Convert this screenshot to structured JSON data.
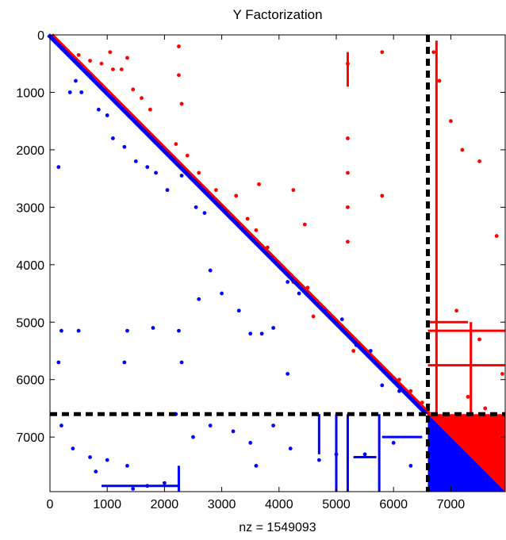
{
  "chart_data": {
    "type": "scatter",
    "subtype": "matrix-sparsity-pattern",
    "title": "Y Factorization",
    "xlabel": "nz = 1549093",
    "ylabel": "",
    "xlim": [
      0,
      7950
    ],
    "ylim": [
      7950,
      0
    ],
    "y_axis_inverted": true,
    "xticks": [
      0,
      1000,
      2000,
      3000,
      4000,
      5000,
      6000,
      7000
    ],
    "yticks": [
      0,
      1000,
      2000,
      3000,
      4000,
      5000,
      6000,
      7000
    ],
    "grid": false,
    "colors": {
      "upper": "#ff0000",
      "lower": "#0000ff",
      "partition_line": "#000000",
      "axes": "#000000"
    },
    "partition_index": 6600,
    "series": [
      {
        "color": "#ff0000",
        "region": "upper triangle (U)",
        "dense_block": {
          "rows": [
            6600,
            7950
          ],
          "cols": [
            6600,
            7950
          ],
          "part": "upper"
        },
        "diagonal_band": [
          0,
          6600
        ],
        "points": [
          [
            500,
            350
          ],
          [
            700,
            450
          ],
          [
            900,
            500
          ],
          [
            1050,
            300
          ],
          [
            1100,
            600
          ],
          [
            1250,
            600
          ],
          [
            1350,
            400
          ],
          [
            1450,
            950
          ],
          [
            1600,
            1100
          ],
          [
            1750,
            1300
          ],
          [
            2250,
            200
          ],
          [
            2250,
            700
          ],
          [
            2300,
            1200
          ],
          [
            2200,
            1900
          ],
          [
            2400,
            2100
          ],
          [
            2600,
            2400
          ],
          [
            2900,
            2700
          ],
          [
            3250,
            2800
          ],
          [
            3450,
            3200
          ],
          [
            3600,
            3400
          ],
          [
            3800,
            3700
          ],
          [
            3650,
            2600
          ],
          [
            4250,
            2700
          ],
          [
            4250,
            4300
          ],
          [
            4450,
            3300
          ],
          [
            4500,
            4400
          ],
          [
            4600,
            4900
          ],
          [
            5200,
            500
          ],
          [
            5200,
            1800
          ],
          [
            5200,
            2400
          ],
          [
            5200,
            3000
          ],
          [
            5200,
            3600
          ],
          [
            5300,
            5500
          ],
          [
            5600,
            5600
          ],
          [
            5800,
            300
          ],
          [
            5800,
            2800
          ],
          [
            6100,
            6000
          ],
          [
            6300,
            6200
          ],
          [
            6500,
            6400
          ],
          [
            6700,
            300
          ],
          [
            6800,
            800
          ],
          [
            7000,
            1500
          ],
          [
            7200,
            2000
          ],
          [
            7500,
            2200
          ],
          [
            7800,
            3500
          ],
          [
            7100,
            4800
          ],
          [
            7500,
            5300
          ],
          [
            7900,
            5900
          ],
          [
            7300,
            6300
          ],
          [
            7600,
            6500
          ]
        ],
        "hlines": [
          {
            "y": 5150,
            "x": [
              6600,
              7950
            ]
          },
          {
            "y": 5750,
            "x": [
              6600,
              7950
            ]
          },
          {
            "y": 5000,
            "x": [
              6600,
              7300
            ]
          }
        ],
        "vlines": [
          {
            "x": 5200,
            "y": [
              300,
              900
            ]
          },
          {
            "x": 6750,
            "y": [
              100,
              6600
            ]
          },
          {
            "x": 7350,
            "y": [
              5000,
              6600
            ]
          }
        ]
      },
      {
        "color": "#0000ff",
        "region": "lower triangle (L)",
        "dense_block": {
          "rows": [
            6600,
            7950
          ],
          "cols": [
            6600,
            7950
          ],
          "part": "lower"
        },
        "diagonal_band": [
          0,
          6600
        ],
        "points": [
          [
            350,
            1000
          ],
          [
            450,
            800
          ],
          [
            550,
            1000
          ],
          [
            700,
            700
          ],
          [
            850,
            1300
          ],
          [
            1000,
            1400
          ],
          [
            1100,
            1800
          ],
          [
            1300,
            1950
          ],
          [
            1500,
            2200
          ],
          [
            1700,
            2300
          ],
          [
            150,
            2300
          ],
          [
            1850,
            2400
          ],
          [
            2050,
            2700
          ],
          [
            2300,
            2450
          ],
          [
            2550,
            3000
          ],
          [
            2700,
            3100
          ],
          [
            2800,
            4100
          ],
          [
            3000,
            4500
          ],
          [
            3300,
            4800
          ],
          [
            3500,
            5200
          ],
          [
            3700,
            5200
          ],
          [
            3900,
            5100
          ],
          [
            4150,
            4300
          ],
          [
            4350,
            4500
          ],
          [
            4800,
            4800
          ],
          [
            5100,
            4950
          ],
          [
            5350,
            5400
          ],
          [
            5600,
            5500
          ],
          [
            5800,
            6100
          ],
          [
            6100,
            6200
          ],
          [
            200,
            5150
          ],
          [
            500,
            5150
          ],
          [
            1350,
            5150
          ],
          [
            1800,
            5100
          ],
          [
            2250,
            5150
          ],
          [
            2300,
            5700
          ],
          [
            1300,
            5700
          ],
          [
            150,
            5700
          ],
          [
            2600,
            4600
          ],
          [
            4150,
            5900
          ],
          [
            200,
            6800
          ],
          [
            400,
            7200
          ],
          [
            700,
            7350
          ],
          [
            1000,
            7400
          ],
          [
            1350,
            7500
          ],
          [
            1450,
            7900
          ],
          [
            1700,
            7850
          ],
          [
            2000,
            7800
          ],
          [
            2500,
            7000
          ],
          [
            2800,
            6800
          ],
          [
            3200,
            6900
          ],
          [
            3500,
            7100
          ],
          [
            3900,
            6800
          ],
          [
            4200,
            7200
          ],
          [
            4700,
            7400
          ],
          [
            5000,
            7300
          ],
          [
            5500,
            7300
          ],
          [
            6000,
            7100
          ],
          [
            6300,
            7500
          ],
          [
            800,
            7600
          ],
          [
            2200,
            6600
          ],
          [
            3600,
            7500
          ]
        ],
        "hlines": [
          {
            "y": 7850,
            "x": [
              900,
              2250
            ]
          },
          {
            "y": 7350,
            "x": [
              5300,
              5700
            ]
          },
          {
            "y": 7000,
            "x": [
              5800,
              6500
            ]
          }
        ],
        "vlines": [
          {
            "x": 5000,
            "y": [
              6600,
              7950
            ]
          },
          {
            "x": 5200,
            "y": [
              6600,
              7950
            ]
          },
          {
            "x": 5750,
            "y": [
              6600,
              7950
            ]
          },
          {
            "x": 2250,
            "y": [
              7500,
              7950
            ]
          },
          {
            "x": 4700,
            "y": [
              6600,
              7300
            ]
          }
        ]
      }
    ]
  }
}
